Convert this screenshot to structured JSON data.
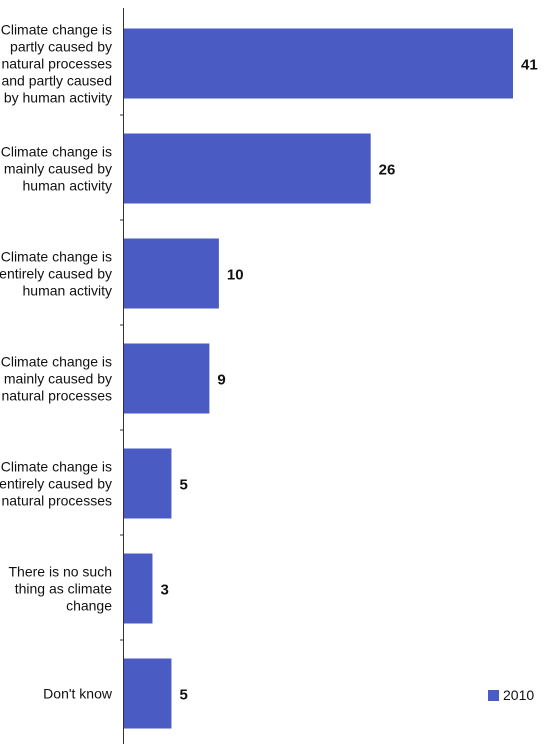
{
  "chart_data": {
    "type": "bar",
    "orientation": "horizontal",
    "categories": [
      "Climate change is partly caused by natural processes and partly caused by human activity",
      "Climate change is mainly caused by human activity",
      "Climate change is entirely caused by human activity",
      "Climate change is mainly caused by natural processes",
      "Climate change is entirely caused by natural processes",
      "There is no such thing as climate change",
      "Don't know"
    ],
    "category_lines": [
      [
        "Climate change is",
        "partly caused by",
        "natural processes",
        "and partly caused",
        "by human activity"
      ],
      [
        "Climate change is",
        "mainly caused by",
        "human activity"
      ],
      [
        "Climate change is",
        "entirely caused by",
        "human activity"
      ],
      [
        "Climate change is",
        "mainly caused by",
        "natural processes"
      ],
      [
        "Climate change is",
        "entirely caused by",
        "natural processes"
      ],
      [
        "There is no such",
        "thing as climate",
        "change"
      ],
      [
        "Don't know"
      ]
    ],
    "series": [
      {
        "name": "2010",
        "values": [
          41,
          26,
          10,
          9,
          5,
          3,
          5
        ],
        "color": "#4a5bc4"
      }
    ],
    "data_labels": [
      "41",
      "26",
      "10",
      "9",
      "5",
      "3",
      "5"
    ],
    "xlim": [
      0,
      42
    ],
    "legend_position": "bottom-right",
    "grid": false
  }
}
